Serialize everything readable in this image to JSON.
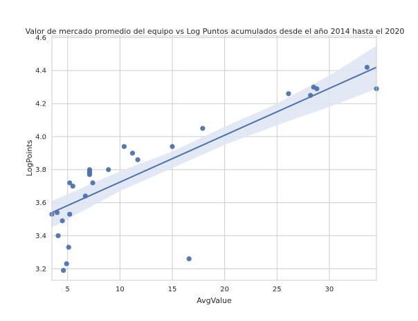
{
  "chart_data": {
    "type": "scatter",
    "title": "Valor de mercado promedio del equipo vs Log Puntos acumulados desde el año 2014 hasta el 2020",
    "xlabel": "AvgValue",
    "ylabel": "LogPoints",
    "xlim": [
      3.5,
      34.5
    ],
    "ylim": [
      3.13,
      4.61
    ],
    "xticks": [
      5,
      10,
      15,
      20,
      25,
      30
    ],
    "xtick_labels": [
      "5",
      "10",
      "15",
      "20",
      "25",
      "30"
    ],
    "yticks": [
      3.2,
      3.4,
      3.6,
      3.8,
      4.0,
      4.2,
      4.4,
      4.6
    ],
    "ytick_labels": [
      "3.2",
      "3.4",
      "3.6",
      "3.8",
      "4.0",
      "4.2",
      "4.4",
      "4.6"
    ],
    "grid": true,
    "colors": {
      "points": "#4c72b0",
      "line": "#4c72b0",
      "band": "#dde4f2",
      "grid": "#cccccc",
      "axes_edge": "#cccccc"
    },
    "points": [
      {
        "x": 3.5,
        "y": 3.53
      },
      {
        "x": 4.0,
        "y": 3.54
      },
      {
        "x": 4.1,
        "y": 3.4
      },
      {
        "x": 4.5,
        "y": 3.49
      },
      {
        "x": 4.6,
        "y": 3.19
      },
      {
        "x": 4.9,
        "y": 3.23
      },
      {
        "x": 5.1,
        "y": 3.33
      },
      {
        "x": 5.2,
        "y": 3.72
      },
      {
        "x": 5.2,
        "y": 3.53
      },
      {
        "x": 5.5,
        "y": 3.7
      },
      {
        "x": 6.7,
        "y": 3.64
      },
      {
        "x": 7.1,
        "y": 3.8
      },
      {
        "x": 7.1,
        "y": 3.79
      },
      {
        "x": 7.1,
        "y": 3.78
      },
      {
        "x": 7.1,
        "y": 3.77
      },
      {
        "x": 7.4,
        "y": 3.72
      },
      {
        "x": 8.9,
        "y": 3.8
      },
      {
        "x": 10.4,
        "y": 3.94
      },
      {
        "x": 11.2,
        "y": 3.9
      },
      {
        "x": 11.7,
        "y": 3.86
      },
      {
        "x": 15.0,
        "y": 3.94
      },
      {
        "x": 16.6,
        "y": 3.26
      },
      {
        "x": 17.9,
        "y": 4.05
      },
      {
        "x": 26.1,
        "y": 4.26
      },
      {
        "x": 28.2,
        "y": 4.25
      },
      {
        "x": 28.5,
        "y": 4.3
      },
      {
        "x": 28.8,
        "y": 4.29
      },
      {
        "x": 33.6,
        "y": 4.42
      },
      {
        "x": 34.5,
        "y": 4.29
      }
    ],
    "regression": {
      "x": [
        3.5,
        34.5
      ],
      "y": [
        3.54,
        4.42
      ]
    },
    "confidence_band": {
      "x": [
        3.5,
        10,
        15,
        20,
        25,
        30,
        34.5
      ],
      "lower": [
        3.45,
        3.67,
        3.81,
        3.95,
        4.07,
        4.18,
        4.29
      ],
      "upper": [
        3.61,
        3.79,
        3.91,
        4.06,
        4.2,
        4.37,
        4.55
      ]
    }
  }
}
